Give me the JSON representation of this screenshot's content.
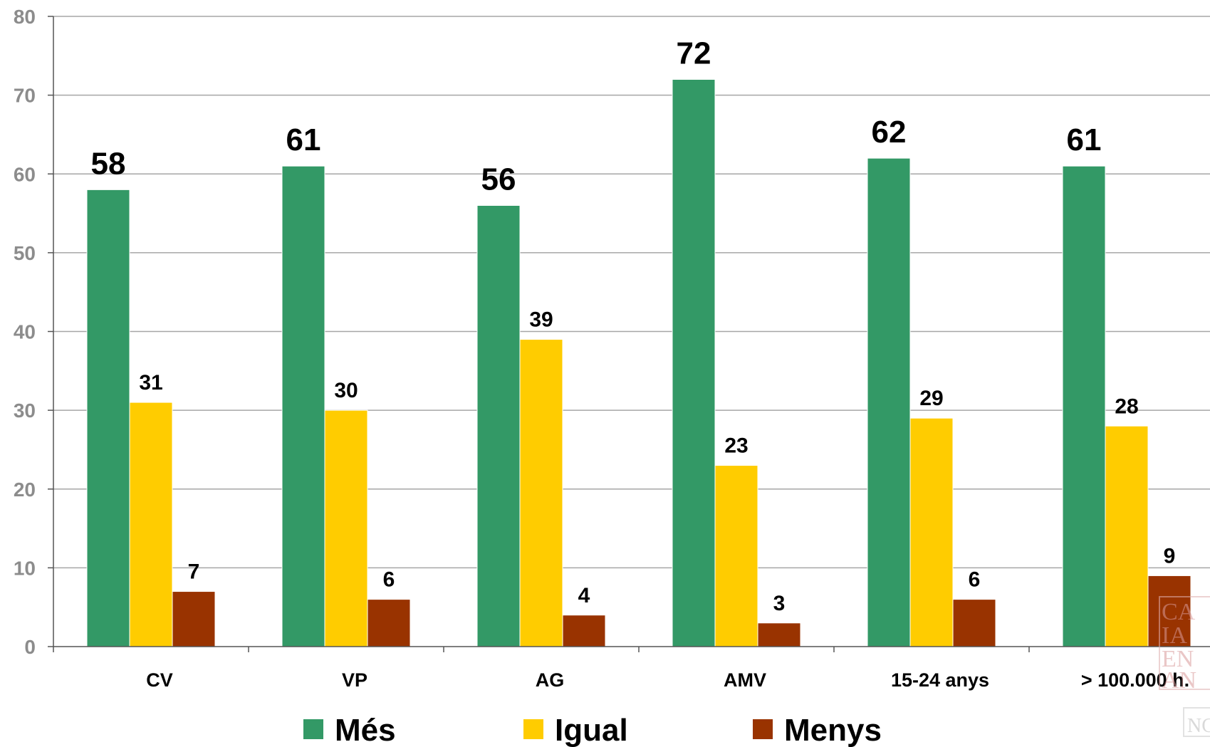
{
  "chart_data": {
    "type": "bar",
    "categories": [
      "CV",
      "VP",
      "AG",
      "AMV",
      "15-24 anys",
      "> 100.000 h."
    ],
    "series": [
      {
        "name": "Més",
        "values": [
          58,
          61,
          56,
          72,
          62,
          61
        ],
        "color": "#339966"
      },
      {
        "name": "Igual",
        "values": [
          31,
          30,
          39,
          23,
          29,
          28
        ],
        "color": "#FFCC00"
      },
      {
        "name": "Menys",
        "values": [
          7,
          6,
          4,
          3,
          6,
          9
        ],
        "color": "#993300"
      }
    ],
    "ylim": [
      0,
      80
    ],
    "yticks": [
      "0",
      "10",
      "20",
      "30",
      "40",
      "50",
      "60",
      "70",
      "80"
    ],
    "grid": true,
    "legend": "bottom",
    "gridline_color": "#a6a6a6"
  }
}
